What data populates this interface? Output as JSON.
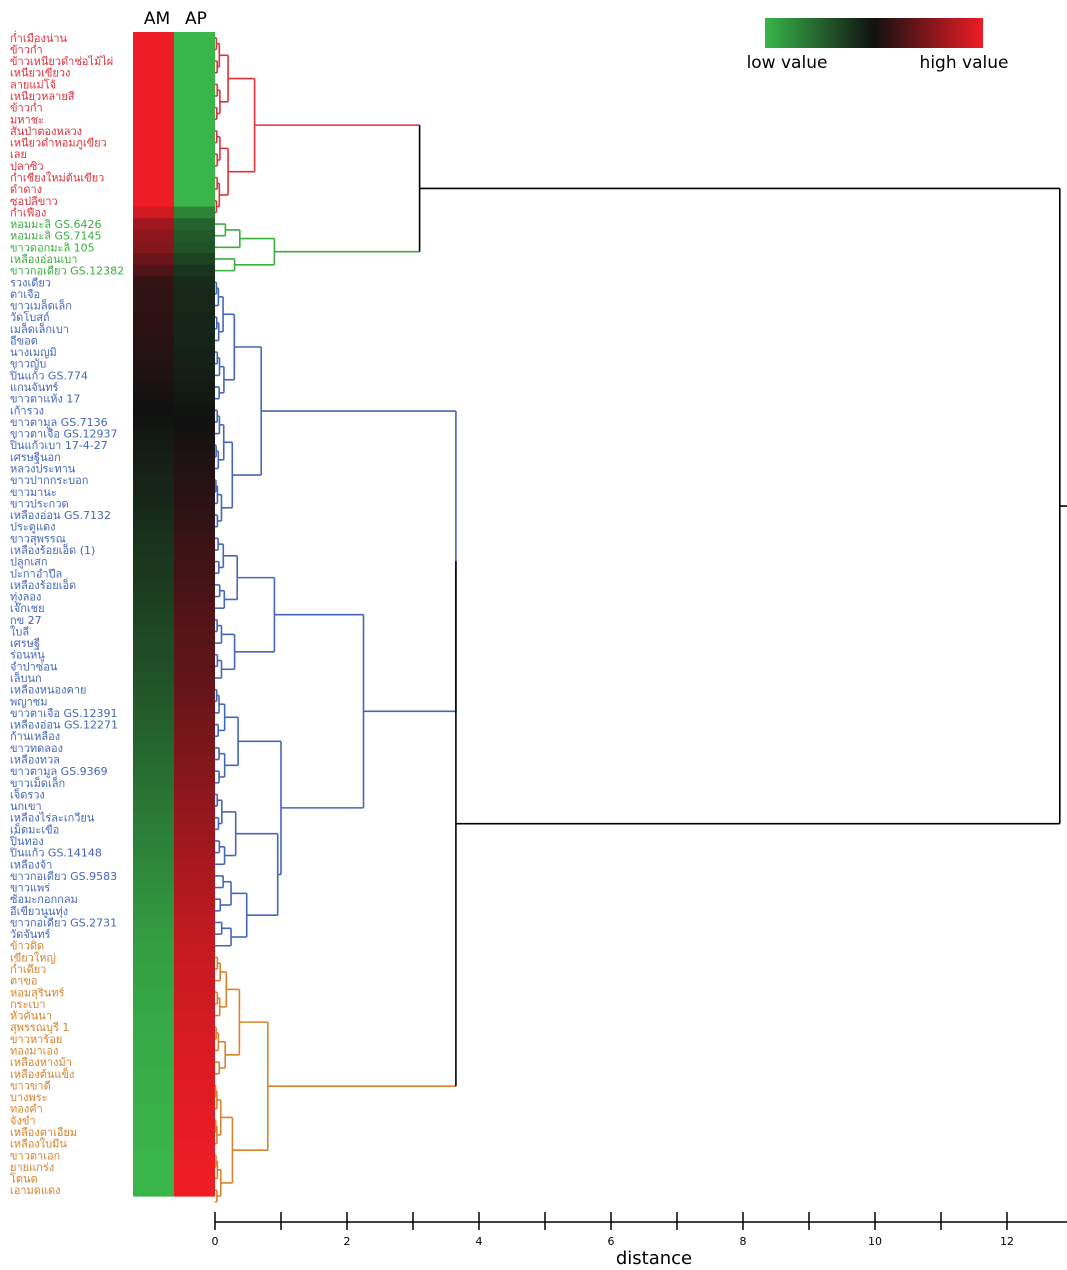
{
  "chart_data": {
    "type": "heatmap",
    "subtype": "clustered heatmap with row dendrogram",
    "columns": [
      "AM",
      "AP"
    ],
    "xlabel": "distance",
    "x_ticks": [
      "0",
      "2",
      "4",
      "6",
      "8",
      "10",
      "12"
    ],
    "xlim": [
      0,
      13
    ],
    "legend": {
      "low_label": "low value",
      "high_label": "high value",
      "low_color": "#39b54a",
      "mid_color": "#111111",
      "high_color": "#ee1c25",
      "position": "top-right"
    },
    "cluster_colors": {
      "red": "#e0303a",
      "green": "#3aae3f",
      "blue": "#4466bb",
      "orange": "#d9822b"
    },
    "rows": [
      {
        "label": "ก่ำเมืองน่าน",
        "cluster": "red",
        "am": 1.0,
        "ap": 0.0
      },
      {
        "label": "ข้าวก่ำ",
        "cluster": "red",
        "am": 1.0,
        "ap": 0.0
      },
      {
        "label": "ข้าวเหนียวดำช่อไม้ไผ่",
        "cluster": "red",
        "am": 1.0,
        "ap": 0.0
      },
      {
        "label": "เหนียวเขียวง",
        "cluster": "red",
        "am": 1.0,
        "ap": 0.0
      },
      {
        "label": "ลายแม่โจ้",
        "cluster": "red",
        "am": 1.0,
        "ap": 0.0
      },
      {
        "label": "เหนียวหลายสี",
        "cluster": "red",
        "am": 1.0,
        "ap": 0.0
      },
      {
        "label": "ข้าวก่ำ",
        "cluster": "red",
        "am": 1.0,
        "ap": 0.0
      },
      {
        "label": "มหาชะ",
        "cluster": "red",
        "am": 1.0,
        "ap": 0.0
      },
      {
        "label": "สันป่าตองหลวง",
        "cluster": "red",
        "am": 1.0,
        "ap": 0.0
      },
      {
        "label": "เหนียวดำหอมภูเขียว",
        "cluster": "red",
        "am": 1.0,
        "ap": 0.0
      },
      {
        "label": "เลย",
        "cluster": "red",
        "am": 1.0,
        "ap": 0.0
      },
      {
        "label": "ปลาซิว",
        "cluster": "red",
        "am": 1.0,
        "ap": 0.0
      },
      {
        "label": "ก่ำเชียงใหม่ต้นเขียว",
        "cluster": "red",
        "am": 1.0,
        "ap": 0.0
      },
      {
        "label": "ดำดาง",
        "cluster": "red",
        "am": 1.0,
        "ap": 0.0
      },
      {
        "label": "ซอปลีขาว",
        "cluster": "red",
        "am": 1.0,
        "ap": 0.0
      },
      {
        "label": "ก่ำเฟือง",
        "cluster": "red",
        "am": 0.93,
        "ap": 0.15
      },
      {
        "label": "หอมมะลิ GS.6426",
        "cluster": "green",
        "am": 0.82,
        "ap": 0.25
      },
      {
        "label": "หอมมะลิ GS.7145",
        "cluster": "green",
        "am": 0.78,
        "ap": 0.28
      },
      {
        "label": "ขาวดอกมะลิ 105",
        "cluster": "green",
        "am": 0.76,
        "ap": 0.3
      },
      {
        "label": "เหลืองอ่อนเบา",
        "cluster": "green",
        "am": 0.7,
        "ap": 0.35
      },
      {
        "label": "ขาวกอเดียว GS.12382",
        "cluster": "green",
        "am": 0.64,
        "ap": 0.39
      },
      {
        "label": "รวงเดียว",
        "cluster": "blue",
        "am": 0.58,
        "ap": 0.42
      },
      {
        "label": "ตาเจือ",
        "cluster": "blue",
        "am": 0.57,
        "ap": 0.43
      },
      {
        "label": "ขาวเมล็ดเล็ก",
        "cluster": "blue",
        "am": 0.57,
        "ap": 0.43
      },
      {
        "label": "วัดโบสถ์",
        "cluster": "blue",
        "am": 0.56,
        "ap": 0.44
      },
      {
        "label": "เมล็ดเล็กเบา",
        "cluster": "blue",
        "am": 0.56,
        "ap": 0.44
      },
      {
        "label": "อีขอด",
        "cluster": "blue",
        "am": 0.55,
        "ap": 0.44
      },
      {
        "label": "นางเมญมิ",
        "cluster": "blue",
        "am": 0.55,
        "ap": 0.45
      },
      {
        "label": "ขาวญับ",
        "cluster": "blue",
        "am": 0.54,
        "ap": 0.45
      },
      {
        "label": "ปิ่นแก้ว GS.774",
        "cluster": "blue",
        "am": 0.53,
        "ap": 0.46
      },
      {
        "label": "แกนจันทร์",
        "cluster": "blue",
        "am": 0.52,
        "ap": 0.47
      },
      {
        "label": "ขาวตาแห้ง 17",
        "cluster": "blue",
        "am": 0.51,
        "ap": 0.48
      },
      {
        "label": "เก้ารวง",
        "cluster": "blue",
        "am": 0.5,
        "ap": 0.49
      },
      {
        "label": "ขาวตามูล GS.7136",
        "cluster": "blue",
        "am": 0.49,
        "ap": 0.5
      },
      {
        "label": "ขาวตาเจือ GS.12937",
        "cluster": "blue",
        "am": 0.48,
        "ap": 0.51
      },
      {
        "label": "ปิ่นแก้วเบา 17-4-27",
        "cluster": "blue",
        "am": 0.47,
        "ap": 0.52
      },
      {
        "label": "เศรษฐีนอก",
        "cluster": "blue",
        "am": 0.46,
        "ap": 0.53
      },
      {
        "label": "หลวงประทาน",
        "cluster": "blue",
        "am": 0.45,
        "ap": 0.54
      },
      {
        "label": "ขาวปากกระบอก",
        "cluster": "blue",
        "am": 0.44,
        "ap": 0.55
      },
      {
        "label": "ขาวมานะ",
        "cluster": "blue",
        "am": 0.44,
        "ap": 0.55
      },
      {
        "label": "ขาวประกวด",
        "cluster": "blue",
        "am": 0.43,
        "ap": 0.56
      },
      {
        "label": "เหลืองอ่อน GS.7132",
        "cluster": "blue",
        "am": 0.42,
        "ap": 0.57
      },
      {
        "label": "ประตูแดง",
        "cluster": "blue",
        "am": 0.41,
        "ap": 0.58
      },
      {
        "label": "ขาวสุพรรณ",
        "cluster": "blue",
        "am": 0.4,
        "ap": 0.59
      },
      {
        "label": "เหลืองร้อยเอ็ด (1)",
        "cluster": "blue",
        "am": 0.39,
        "ap": 0.6
      },
      {
        "label": "ปลูกเสก",
        "cluster": "blue",
        "am": 0.38,
        "ap": 0.61
      },
      {
        "label": "ปะกาอำปึล",
        "cluster": "blue",
        "am": 0.38,
        "ap": 0.61
      },
      {
        "label": "เหลืองร้อยเอ็ด",
        "cluster": "blue",
        "am": 0.37,
        "ap": 0.62
      },
      {
        "label": "ทุ่งลอง",
        "cluster": "blue",
        "am": 0.36,
        "ap": 0.63
      },
      {
        "label": "เจ๊กเชย",
        "cluster": "blue",
        "am": 0.35,
        "ap": 0.64
      },
      {
        "label": "กข 27",
        "cluster": "blue",
        "am": 0.34,
        "ap": 0.65
      },
      {
        "label": "ใบลี",
        "cluster": "blue",
        "am": 0.33,
        "ap": 0.66
      },
      {
        "label": "เศรษฐี",
        "cluster": "blue",
        "am": 0.32,
        "ap": 0.66
      },
      {
        "label": "ร่อนหนู",
        "cluster": "blue",
        "am": 0.32,
        "ap": 0.67
      },
      {
        "label": "จำปาซ่อน",
        "cluster": "blue",
        "am": 0.31,
        "ap": 0.67
      },
      {
        "label": "เล็บนก",
        "cluster": "blue",
        "am": 0.3,
        "ap": 0.68
      },
      {
        "label": "เหลืองหนองคาย",
        "cluster": "blue",
        "am": 0.29,
        "ap": 0.69
      },
      {
        "label": "พญาชม",
        "cluster": "blue",
        "am": 0.28,
        "ap": 0.7
      },
      {
        "label": "ขาวตาเจือ GS.12391",
        "cluster": "blue",
        "am": 0.27,
        "ap": 0.71
      },
      {
        "label": "เหลืองอ่อน GS.12271",
        "cluster": "blue",
        "am": 0.26,
        "ap": 0.72
      },
      {
        "label": "ก้านเหลือง",
        "cluster": "blue",
        "am": 0.25,
        "ap": 0.73
      },
      {
        "label": "ขาวทดลอง",
        "cluster": "blue",
        "am": 0.24,
        "ap": 0.74
      },
      {
        "label": "เหลืองทวล",
        "cluster": "blue",
        "am": 0.23,
        "ap": 0.75
      },
      {
        "label": "ขาวตามูล GS.9369",
        "cluster": "blue",
        "am": 0.22,
        "ap": 0.76
      },
      {
        "label": "ขาวเม็ดเล็ก",
        "cluster": "blue",
        "am": 0.21,
        "ap": 0.77
      },
      {
        "label": "เจ็ดรวง",
        "cluster": "blue",
        "am": 0.2,
        "ap": 0.78
      },
      {
        "label": "นกเขา",
        "cluster": "blue",
        "am": 0.19,
        "ap": 0.79
      },
      {
        "label": "เหลืองไร่ละเกวียน",
        "cluster": "blue",
        "am": 0.18,
        "ap": 0.8
      },
      {
        "label": "เม็ดมะเขือ",
        "cluster": "blue",
        "am": 0.17,
        "ap": 0.81
      },
      {
        "label": "ปิ่นทอง",
        "cluster": "blue",
        "am": 0.16,
        "ap": 0.82
      },
      {
        "label": "ปิ่นแก้ว GS.14148",
        "cluster": "blue",
        "am": 0.15,
        "ap": 0.83
      },
      {
        "label": "เหลืองจ้า",
        "cluster": "blue",
        "am": 0.14,
        "ap": 0.84
      },
      {
        "label": "ขาวกอเดียว GS.9583",
        "cluster": "blue",
        "am": 0.13,
        "ap": 0.85
      },
      {
        "label": "ขาวแพร่",
        "cluster": "blue",
        "am": 0.12,
        "ap": 0.86
      },
      {
        "label": "ซ้อมะกอกกลม",
        "cluster": "blue",
        "am": 0.11,
        "ap": 0.87
      },
      {
        "label": "อีเขียวนูนทุ่ง",
        "cluster": "blue",
        "am": 0.1,
        "ap": 0.88
      },
      {
        "label": "ขาวกอเดียว GS.2731",
        "cluster": "blue",
        "am": 0.09,
        "ap": 0.89
      },
      {
        "label": "วัดจันทร์",
        "cluster": "blue",
        "am": 0.08,
        "ap": 0.9
      },
      {
        "label": "ข้าวดิด",
        "cluster": "orange",
        "am": 0.07,
        "ap": 0.91
      },
      {
        "label": "เขียวใหญ่",
        "cluster": "orange",
        "am": 0.07,
        "ap": 0.91
      },
      {
        "label": "ก่ำเดียว",
        "cluster": "orange",
        "am": 0.06,
        "ap": 0.92
      },
      {
        "label": "ตาขอ",
        "cluster": "orange",
        "am": 0.06,
        "ap": 0.92
      },
      {
        "label": "หอมสุรินทร์",
        "cluster": "orange",
        "am": 0.05,
        "ap": 0.93
      },
      {
        "label": "กระเบา",
        "cluster": "orange",
        "am": 0.05,
        "ap": 0.93
      },
      {
        "label": "หัวคันนา",
        "cluster": "orange",
        "am": 0.04,
        "ap": 0.94
      },
      {
        "label": "สุพรรณบุรี 1",
        "cluster": "orange",
        "am": 0.04,
        "ap": 0.94
      },
      {
        "label": "ขาวหาร้อย",
        "cluster": "orange",
        "am": 0.03,
        "ap": 0.95
      },
      {
        "label": "ทองมาเอง",
        "cluster": "orange",
        "am": 0.03,
        "ap": 0.95
      },
      {
        "label": "เหลืองหางม้า",
        "cluster": "orange",
        "am": 0.03,
        "ap": 0.96
      },
      {
        "label": "เหลืองต้นแข็ง",
        "cluster": "orange",
        "am": 0.02,
        "ap": 0.96
      },
      {
        "label": "ขาวขาดี",
        "cluster": "orange",
        "am": 0.02,
        "ap": 0.97
      },
      {
        "label": "บางพระ",
        "cluster": "orange",
        "am": 0.02,
        "ap": 0.97
      },
      {
        "label": "ทองคำ",
        "cluster": "orange",
        "am": 0.01,
        "ap": 0.98
      },
      {
        "label": "จังขำ",
        "cluster": "orange",
        "am": 0.01,
        "ap": 0.98
      },
      {
        "label": "เหลืองตาเอียม",
        "cluster": "orange",
        "am": 0.01,
        "ap": 0.98
      },
      {
        "label": "เหลืองใบมีน",
        "cluster": "orange",
        "am": 0.01,
        "ap": 0.99
      },
      {
        "label": "ขาวตาเอก",
        "cluster": "orange",
        "am": 0.0,
        "ap": 0.99
      },
      {
        "label": "ยายแกร่ง",
        "cluster": "orange",
        "am": 0.0,
        "ap": 1.0
      },
      {
        "label": "โตนด",
        "cluster": "orange",
        "am": 0.0,
        "ap": 1.0
      },
      {
        "label": "เอามดแดง",
        "cluster": "orange",
        "am": 0.0,
        "ap": 1.0
      }
    ],
    "dendrogram": {
      "note": "merge heights in distance units; node ranges refer to row indices",
      "merges": [
        {
          "rows": [
            0,
            15
          ],
          "height": 0.6,
          "cluster": "red"
        },
        {
          "rows": [
            16,
            20
          ],
          "height": 0.9,
          "cluster": "green"
        },
        {
          "rows": [
            0,
            20
          ],
          "height": 3.1,
          "cluster": "red"
        },
        {
          "rows": [
            21,
            42
          ],
          "height": 0.7,
          "cluster": "blue"
        },
        {
          "rows": [
            21,
            35
          ],
          "height": 0.7,
          "cluster": "blue"
        },
        {
          "rows": [
            36,
            55
          ],
          "height": 0.9,
          "cluster": "blue"
        },
        {
          "rows": [
            56,
            64
          ],
          "height": 0.35,
          "cluster": "blue"
        },
        {
          "rows": [
            65,
            78
          ],
          "height": 0.95,
          "cluster": "blue"
        },
        {
          "rows": [
            56,
            78
          ],
          "height": 1.0,
          "cluster": "blue"
        },
        {
          "rows": [
            36,
            78
          ],
          "height": 2.25,
          "cluster": "blue"
        },
        {
          "rows": [
            21,
            78
          ],
          "height": 2.25,
          "cluster": "blue"
        },
        {
          "rows": [
            79,
            100
          ],
          "height": 0.8,
          "cluster": "orange"
        },
        {
          "rows": [
            21,
            100
          ],
          "height": 3.65,
          "cluster": "black"
        },
        {
          "rows": [
            0,
            100
          ],
          "height": 12.8,
          "cluster": "black"
        }
      ]
    }
  }
}
